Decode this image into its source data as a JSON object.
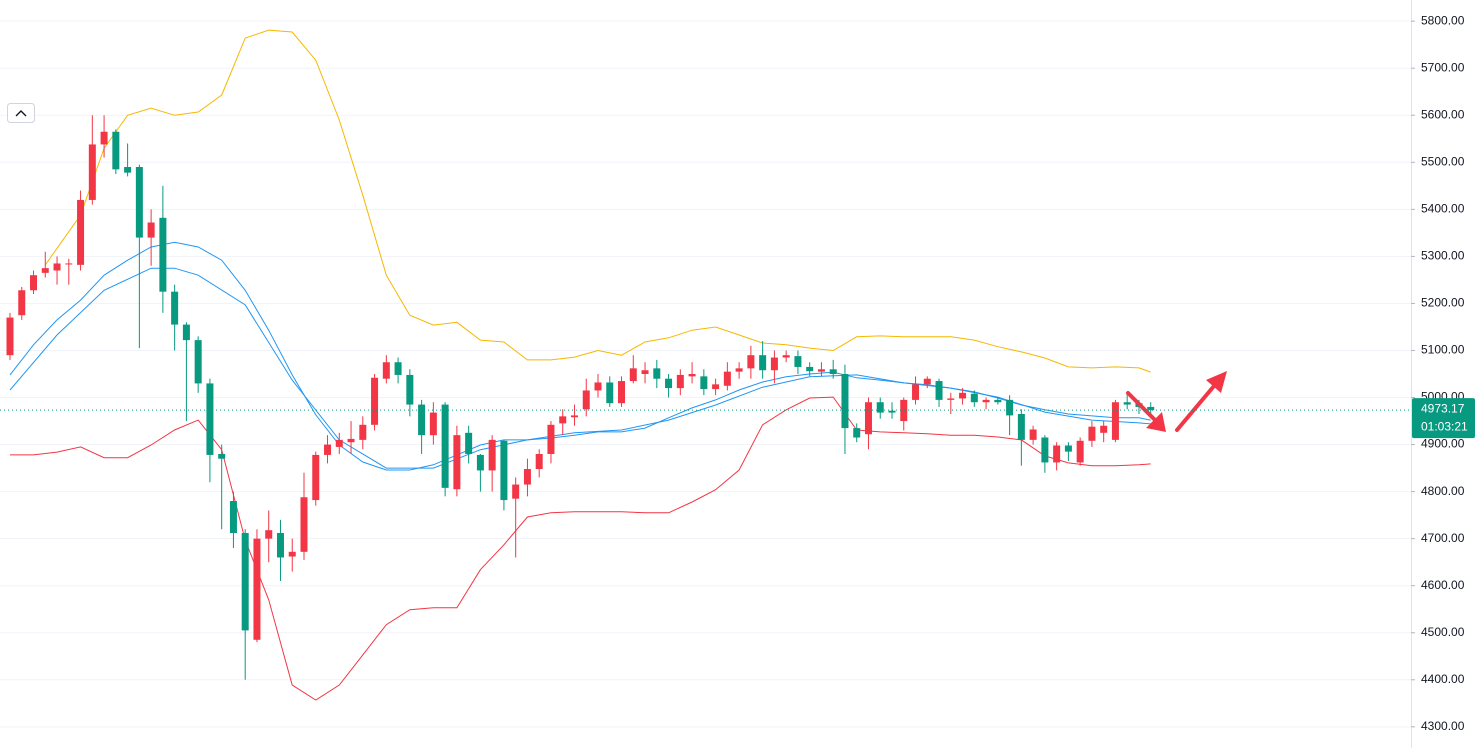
{
  "chart_data": {
    "type": "candlestick",
    "up_color": "#f23645",
    "down_color": "#089981",
    "grid": true,
    "ylim": [
      4255,
      5845
    ],
    "yticks": [
      {
        "value": 5800,
        "label": "5800.00"
      },
      {
        "value": 5700,
        "label": "5700.00"
      },
      {
        "value": 5600,
        "label": "5600.00"
      },
      {
        "value": 5500,
        "label": "5500.00"
      },
      {
        "value": 5400,
        "label": "5400.00"
      },
      {
        "value": 5300,
        "label": "5300.00"
      },
      {
        "value": 5200,
        "label": "5200.00"
      },
      {
        "value": 5100,
        "label": "5100.00"
      },
      {
        "value": 5000,
        "label": "5000.00"
      },
      {
        "value": 4900,
        "label": "4900.00"
      },
      {
        "value": 4800,
        "label": "4800.00"
      },
      {
        "value": 4700,
        "label": "4700.00"
      },
      {
        "value": 4600,
        "label": "4600.00"
      },
      {
        "value": 4500,
        "label": "4500.00"
      },
      {
        "value": 4400,
        "label": "4400.00"
      },
      {
        "value": 4300,
        "label": "4300.00"
      }
    ],
    "open": [
      5090,
      5175,
      5228,
      5265,
      5270,
      5283,
      5282,
      5420,
      5538,
      5565,
      5490,
      5490,
      5340,
      5382,
      5225,
      5155,
      5122,
      5030,
      4880,
      4780,
      4712,
      4485,
      4700,
      4712,
      4662,
      4672,
      4782,
      4878,
      4895,
      4905,
      4910,
      4942,
      5040,
      5075,
      5048,
      4985,
      4920,
      4985,
      4805,
      4925,
      4878,
      4845,
      4908,
      4785,
      4815,
      4848,
      4880,
      4945,
      4958,
      4975,
      5015,
      5032,
      4988,
      5035,
      5050,
      5062,
      5040,
      5020,
      5045,
      5045,
      5018,
      5025,
      5055,
      5062,
      5090,
      5058,
      5085,
      5088,
      5065,
      5055,
      5060,
      5050,
      4935,
      4922,
      4990,
      4972,
      4950,
      4995,
      5028,
      5035,
      4995,
      4998,
      5008,
      4990,
      4995,
      4995,
      4965,
      4910,
      4915,
      4862,
      4898,
      4862,
      4908,
      4925,
      4910,
      4990,
      4988,
      4980
    ],
    "high": [
      5180,
      5235,
      5270,
      5310,
      5300,
      5295,
      5440,
      5600,
      5600,
      5570,
      5540,
      5495,
      5400,
      5450,
      5240,
      5160,
      5130,
      5040,
      4900,
      4800,
      4720,
      4720,
      4760,
      4740,
      4700,
      4840,
      4885,
      4920,
      4925,
      4950,
      4960,
      5050,
      5090,
      5085,
      5060,
      4995,
      4990,
      4990,
      4940,
      4940,
      4880,
      4920,
      4910,
      4830,
      4870,
      4890,
      4950,
      4975,
      4985,
      5040,
      5050,
      5045,
      5045,
      5090,
      5075,
      5080,
      5050,
      5060,
      5075,
      5060,
      5040,
      5075,
      5075,
      5110,
      5120,
      5100,
      5100,
      5100,
      5075,
      5075,
      5080,
      5070,
      4945,
      5000,
      5000,
      4990,
      5000,
      5045,
      5045,
      5040,
      5010,
      5020,
      5015,
      5000,
      5000,
      5005,
      4975,
      4940,
      4920,
      4905,
      4905,
      4915,
      4950,
      4950,
      4995,
      5012,
      4995,
      4990
    ],
    "low": [
      5080,
      5165,
      5220,
      5255,
      5240,
      5240,
      5270,
      5410,
      5510,
      5475,
      5470,
      5105,
      5280,
      5180,
      5100,
      4950,
      5010,
      4820,
      4720,
      4680,
      4400,
      4480,
      4650,
      4610,
      4630,
      4655,
      4770,
      4860,
      4880,
      4880,
      4890,
      4930,
      5030,
      5030,
      4960,
      4880,
      4900,
      4790,
      4790,
      4860,
      4800,
      4800,
      4760,
      4660,
      4790,
      4830,
      4860,
      4920,
      4940,
      4960,
      5000,
      4980,
      4980,
      5030,
      5030,
      5020,
      5000,
      5005,
      5030,
      5005,
      5005,
      5015,
      5040,
      5040,
      5040,
      5030,
      5075,
      5050,
      5045,
      5045,
      5040,
      4880,
      4905,
      4890,
      4955,
      4955,
      4930,
      4985,
      5020,
      4980,
      4965,
      4985,
      4980,
      4975,
      4985,
      4920,
      4855,
      4900,
      4840,
      4845,
      4865,
      4855,
      4895,
      4905,
      4905,
      4975,
      4965,
      4965
    ],
    "close": [
      5170,
      5228,
      5260,
      5275,
      5285,
      5285,
      5420,
      5538,
      5565,
      5485,
      5478,
      5340,
      5372,
      5225,
      5155,
      5122,
      5030,
      4878,
      4870,
      4712,
      4505,
      4700,
      4718,
      4660,
      4672,
      4788,
      4878,
      4900,
      4910,
      4912,
      4942,
      5042,
      5075,
      5048,
      4985,
      4920,
      4968,
      4808,
      4920,
      4880,
      4845,
      4910,
      4782,
      4815,
      4848,
      4880,
      4942,
      4960,
      4962,
      5015,
      5032,
      4988,
      5035,
      5062,
      5058,
      5040,
      5020,
      5048,
      5050,
      5018,
      5028,
      5055,
      5062,
      5090,
      5058,
      5085,
      5090,
      5065,
      5056,
      5060,
      5050,
      4935,
      4915,
      4990,
      4968,
      4968,
      4995,
      5028,
      5040,
      4995,
      4998,
      5010,
      4990,
      4995,
      4990,
      4962,
      4910,
      4932,
      4862,
      4898,
      4885,
      4908,
      4938,
      4940,
      4990,
      4985,
      4980,
      4973.17
    ],
    "lines": [
      {
        "color": "#f5b800",
        "x": [
          3,
          6,
          8,
          10,
          12,
          14,
          16,
          18,
          20,
          22,
          24,
          26,
          28,
          30,
          32,
          34,
          36,
          38,
          40,
          42,
          44,
          46,
          48,
          50,
          52,
          54,
          56,
          58,
          60,
          62,
          64,
          66,
          68,
          70,
          72,
          74,
          76,
          78,
          80,
          82,
          84,
          86,
          88,
          90,
          92,
          94,
          96,
          97
        ],
        "values": [
          5282,
          5388,
          5530,
          5600,
          5615,
          5600,
          5607,
          5643,
          5764,
          5781,
          5777,
          5717,
          5590,
          5430,
          5260,
          5175,
          5154,
          5160,
          5122,
          5118,
          5080,
          5080,
          5086,
          5100,
          5090,
          5118,
          5127,
          5143,
          5150,
          5133,
          5116,
          5112,
          5105,
          5100,
          5129,
          5131,
          5129,
          5129,
          5129,
          5122,
          5108,
          5097,
          5084,
          5065,
          5063,
          5065,
          5063,
          5054
        ]
      },
      {
        "color": "#f23645",
        "x": [
          0,
          2,
          4,
          6,
          8,
          10,
          12,
          14,
          16,
          18,
          20,
          22,
          24,
          26,
          28,
          30,
          32,
          34,
          36,
          38,
          40,
          42,
          44,
          46,
          48,
          50,
          52,
          54,
          56,
          58,
          60,
          62,
          64,
          66,
          68,
          70,
          72,
          74,
          76,
          78,
          80,
          82,
          84,
          86,
          88,
          90,
          92,
          94,
          96,
          97
        ],
        "values": [
          4878,
          4878,
          4884,
          4895,
          4872,
          4872,
          4899,
          4931,
          4952,
          4889,
          4697,
          4570,
          4389,
          4357,
          4389,
          4453,
          4517,
          4549,
          4553,
          4553,
          4634,
          4687,
          4746,
          4755,
          4757,
          4757,
          4757,
          4755,
          4755,
          4778,
          4804,
          4846,
          4942,
          4974,
          4999,
          5001,
          4931,
          4927,
          4925,
          4923,
          4920,
          4920,
          4916,
          4910,
          4876,
          4861,
          4855,
          4855,
          4857,
          4859
        ]
      },
      {
        "color": "#2196f3",
        "x": [
          0,
          2,
          4,
          6,
          8,
          10,
          12,
          14,
          16,
          18,
          20,
          22,
          24,
          26,
          28,
          30,
          32,
          34,
          36,
          38,
          40,
          42,
          44,
          46,
          48,
          50,
          52,
          54,
          56,
          58,
          60,
          62,
          64,
          66,
          68,
          70,
          72,
          74,
          76,
          78,
          80,
          82,
          84,
          86,
          88,
          90,
          92,
          94,
          96,
          97
        ],
        "values": [
          5048,
          5112,
          5165,
          5207,
          5260,
          5292,
          5320,
          5330,
          5320,
          5292,
          5228,
          5143,
          5048,
          4963,
          4899,
          4863,
          4846,
          4846,
          4857,
          4878,
          4899,
          4910,
          4910,
          4914,
          4920,
          4927,
          4927,
          4935,
          4957,
          4978,
          4995,
          5016,
          5033,
          5044,
          5050,
          5054,
          5042,
          5037,
          5031,
          5027,
          5020,
          5012,
          4999,
          4984,
          4974,
          4965,
          4961,
          4957,
          4957,
          4952
        ]
      },
      {
        "color": "#2196f3",
        "x": [
          0,
          4,
          8,
          12,
          14,
          16,
          20,
          24,
          28,
          32,
          36,
          40,
          44,
          48,
          52,
          56,
          60,
          64,
          68,
          72,
          76,
          80,
          84,
          88,
          92,
          96,
          97
        ],
        "values": [
          5016,
          5133,
          5228,
          5275,
          5275,
          5260,
          5197,
          5037,
          4910,
          4850,
          4850,
          4889,
          4910,
          4925,
          4931,
          4952,
          4984,
          5022,
          5044,
          5048,
          5031,
          5020,
          5001,
          4969,
          4952,
          4946,
          4944
        ]
      }
    ],
    "last_price": 4973.17,
    "countdown": "01:03:21"
  }
}
